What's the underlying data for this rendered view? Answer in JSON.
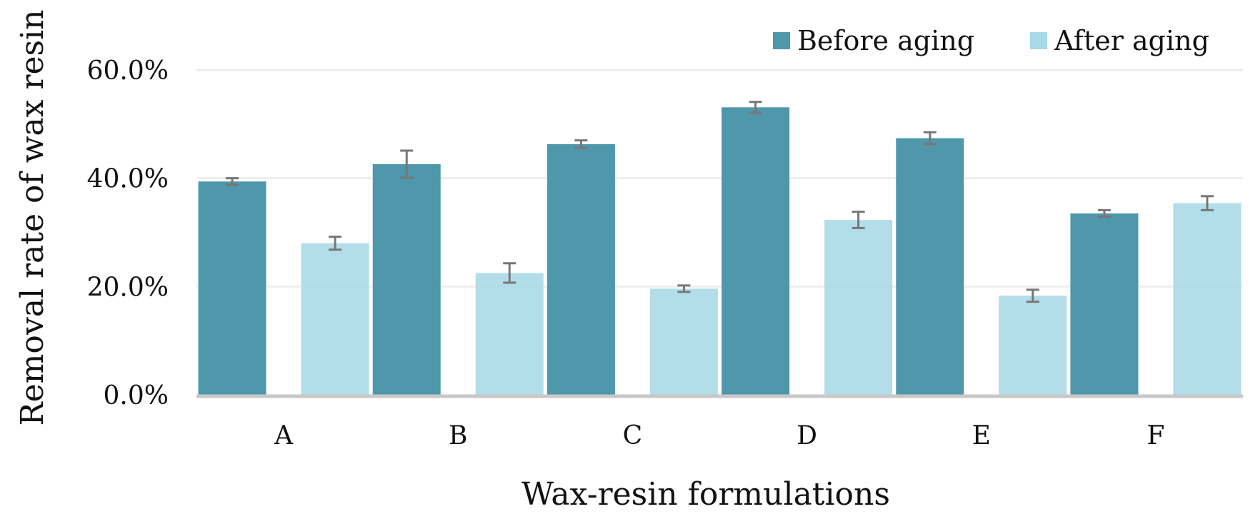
{
  "chart_data": {
    "type": "bar",
    "title": "",
    "xlabel": "Wax-resin formulations",
    "ylabel": "Removal rate of wax resin",
    "categories": [
      "A",
      "B",
      "C",
      "D",
      "E",
      "F"
    ],
    "ylim": [
      0,
      60
    ],
    "yticks": [
      0,
      20,
      40,
      60
    ],
    "ytick_labels": [
      "0.0%",
      "20.0%",
      "40.0%",
      "60.0%"
    ],
    "grid": true,
    "legend_position": "top-right",
    "series": [
      {
        "name": "Before aging",
        "color": "#4f97ab",
        "values": [
          39.4,
          42.6,
          46.3,
          53.1,
          47.4,
          33.5
        ],
        "errors": [
          0.6,
          2.5,
          0.7,
          1.0,
          1.1,
          0.6
        ]
      },
      {
        "name": "After aging",
        "color": "#a9d8e6",
        "values": [
          28.0,
          22.5,
          19.6,
          32.3,
          18.3,
          35.4
        ],
        "errors": [
          1.2,
          1.8,
          0.6,
          1.5,
          1.1,
          1.3
        ]
      }
    ],
    "error_bar_color": "#777777",
    "axis_color": "#c8c8c8",
    "grid_color": "#eeeeee"
  }
}
